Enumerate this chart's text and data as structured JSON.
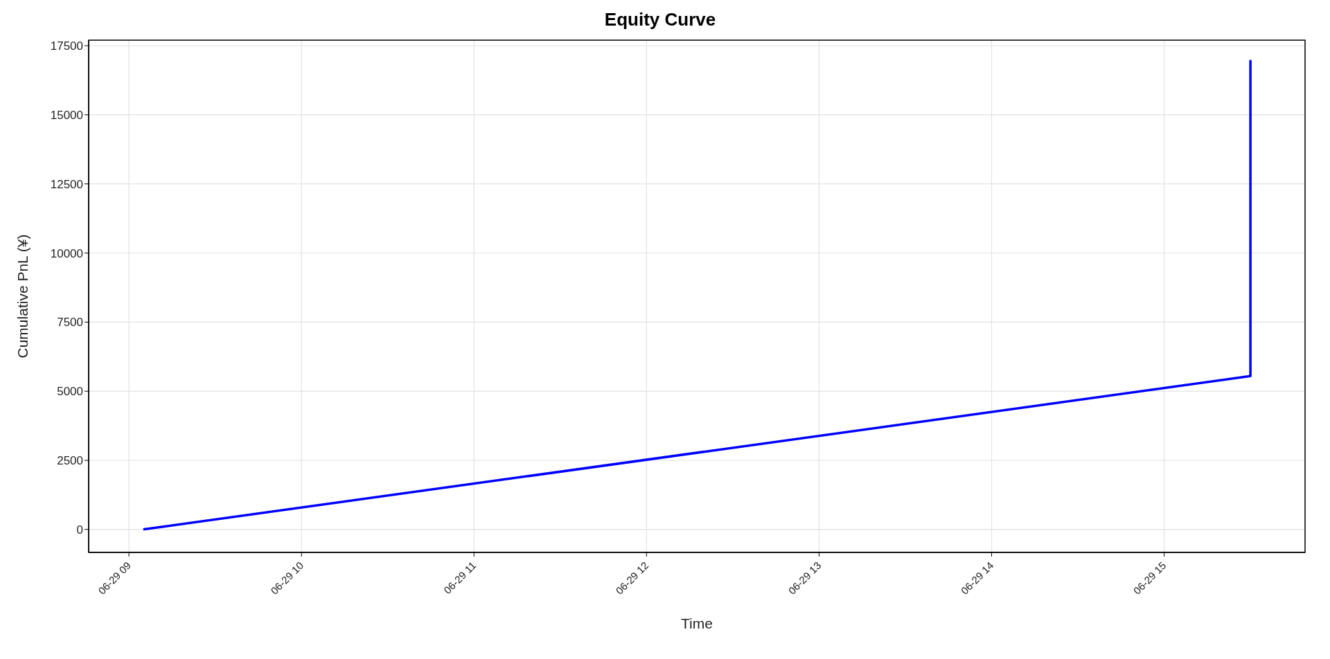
{
  "chart_data": {
    "type": "line",
    "title": "Equity Curve",
    "xlabel": "Time",
    "ylabel": "Cumulative PnL (¥)",
    "x": [
      "--06-29T09:05",
      "--06-29T15:30",
      "--06-29T15:30",
      "--06-29T15:30"
    ],
    "series": [
      {
        "color": "#0000ff",
        "values": [
          0,
          5550,
          16950,
          16450
        ]
      }
    ],
    "xlim": [
      "--06-29T08:46",
      "--06-29T15:49"
    ],
    "xticks": [
      {
        "value": "--06-29T09:00",
        "label": "06-29 09"
      },
      {
        "value": "--06-29T10:00",
        "label": "06-29 10"
      },
      {
        "value": "--06-29T11:00",
        "label": "06-29 11"
      },
      {
        "value": "--06-29T12:00",
        "label": "06-29 12"
      },
      {
        "value": "--06-29T13:00",
        "label": "06-29 13"
      },
      {
        "value": "--06-29T14:00",
        "label": "06-29 14"
      },
      {
        "value": "--06-29T15:00",
        "label": "06-29 15"
      }
    ],
    "ylim": [
      -830,
      17700
    ],
    "yticks": [
      0,
      2500,
      5000,
      7500,
      10000,
      12500,
      15000,
      17500
    ],
    "grid": true,
    "marker": "none",
    "line_style": "solid",
    "legend": false
  }
}
